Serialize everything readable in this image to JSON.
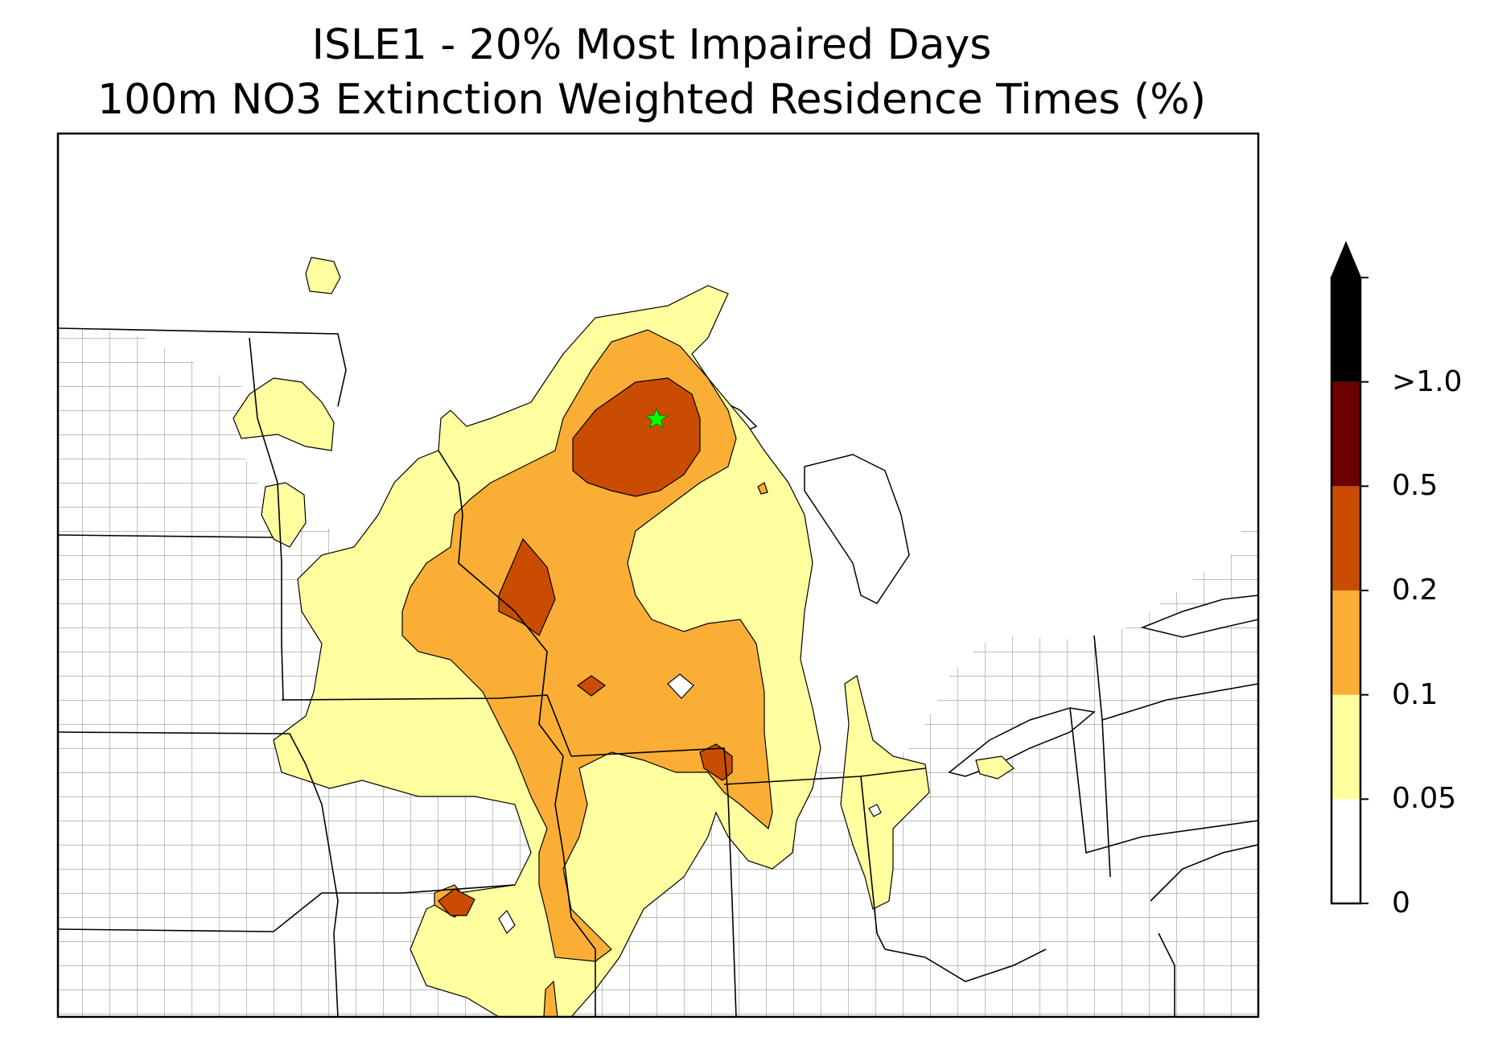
{
  "title": {
    "line1": "ISLE1 - 20% Most Impaired Days",
    "line2": "100m NO3 Extinction Weighted Residence Times (%)"
  },
  "colorbar": {
    "levels": [
      {
        "label": "0",
        "color": "#ffffff"
      },
      {
        "label": "0.05",
        "color": "#ffff9f"
      },
      {
        "label": "0.1",
        "color": "#fbae35"
      },
      {
        "label": "0.2",
        "color": "#c94c00"
      },
      {
        "label": "0.5",
        "color": "#6b0000"
      },
      {
        "label": ">1.0",
        "color": "#000000"
      }
    ]
  },
  "map": {
    "site_marker_color": "#00ff00",
    "border_color": "#000000",
    "county_color": "#999999"
  }
}
